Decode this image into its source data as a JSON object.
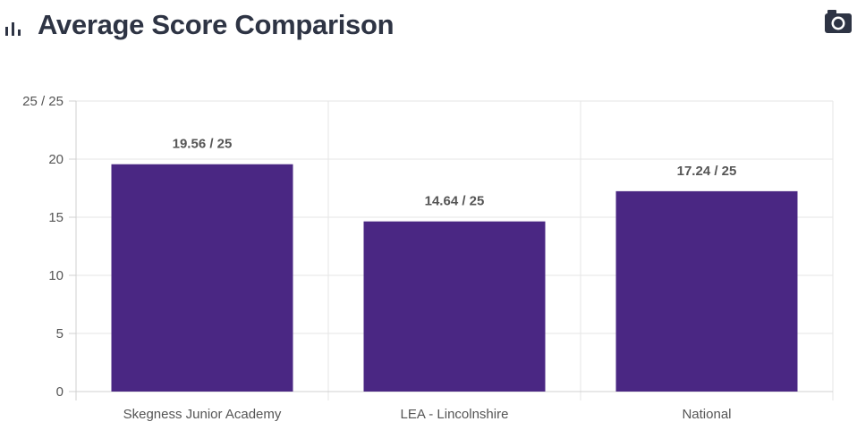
{
  "header": {
    "title": "Average Score Comparison",
    "chart_icon": "bar-chart-icon",
    "camera_icon": "camera-icon"
  },
  "colors": {
    "bar": "#4a2783",
    "grid": "#e6e6e6",
    "axis": "#d0d0d0",
    "text": "#555555",
    "title": "#2e3444"
  },
  "chart_data": {
    "type": "bar",
    "categories": [
      "Skegness Junior Academy",
      "LEA - Lincolnshire",
      "National"
    ],
    "values": [
      19.56,
      14.64,
      17.24
    ],
    "data_labels": [
      "19.56 / 25",
      "14.64 / 25",
      "17.24 / 25"
    ],
    "y_ticks": [
      "0",
      "5",
      "10",
      "15",
      "20",
      "25 / 25"
    ],
    "y_tick_values": [
      0,
      5,
      10,
      15,
      20,
      25
    ],
    "ylim": [
      0,
      25
    ],
    "grid": true,
    "legend": "none"
  }
}
